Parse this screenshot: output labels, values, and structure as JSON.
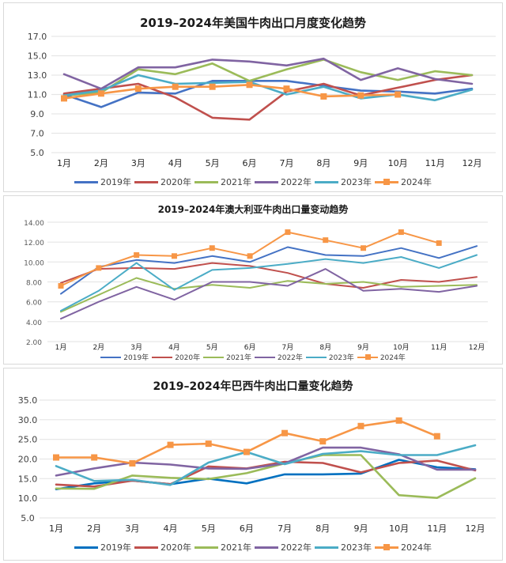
{
  "chart_data": [
    {
      "type": "line",
      "title": "2019–2024年美国牛肉出口月度变化趋势",
      "xlabel": "",
      "ylabel": "",
      "categories": [
        "1月",
        "2月",
        "3月",
        "4月",
        "5月",
        "6月",
        "7月",
        "8月",
        "9月",
        "10月",
        "11月",
        "12月"
      ],
      "ylim": [
        5.0,
        17.0
      ],
      "yticks": [
        "17.0",
        "15.0",
        "13.0",
        "11.0",
        "9.0",
        "7.0",
        "5.0"
      ],
      "ytick_values": [
        17,
        15,
        13,
        11,
        9,
        7,
        5
      ],
      "grid": true,
      "legend": "bottom",
      "series": [
        {
          "name": "2019年",
          "color": "#4472c4",
          "marker": false,
          "values": [
            11.0,
            9.7,
            11.2,
            11.1,
            12.4,
            12.4,
            12.4,
            11.9,
            11.4,
            11.3,
            11.1,
            11.6
          ]
        },
        {
          "name": "2020年",
          "color": "#c0504d",
          "marker": false,
          "values": [
            11.1,
            11.6,
            12.1,
            10.7,
            8.6,
            8.4,
            11.3,
            12.1,
            10.9,
            11.7,
            12.5,
            13.0
          ]
        },
        {
          "name": "2021年",
          "color": "#9bbb59",
          "marker": false,
          "values": [
            10.9,
            11.2,
            13.6,
            13.1,
            14.2,
            12.4,
            13.6,
            14.6,
            13.3,
            12.5,
            13.4,
            13.0
          ]
        },
        {
          "name": "2022年",
          "color": "#8064a2",
          "marker": false,
          "values": [
            13.1,
            11.6,
            13.8,
            13.8,
            14.6,
            14.4,
            14.0,
            14.7,
            12.5,
            13.7,
            12.6,
            12.1
          ]
        },
        {
          "name": "2023年",
          "color": "#4bacc6",
          "marker": false,
          "values": [
            10.9,
            11.4,
            13.0,
            12.1,
            12.2,
            12.3,
            11.0,
            11.8,
            10.6,
            11.0,
            10.4,
            11.5
          ]
        },
        {
          "name": "2024年",
          "color": "#f79646",
          "marker": true,
          "values": [
            10.6,
            11.1,
            11.6,
            11.8,
            11.8,
            12.0,
            11.6,
            10.8,
            10.9,
            11.0,
            null,
            null
          ]
        }
      ]
    },
    {
      "type": "line",
      "title": "2019–2024年澳大利亚牛肉出口量变动趋势",
      "xlabel": "",
      "ylabel": "",
      "categories": [
        "1月",
        "2月",
        "3月",
        "4月",
        "5月",
        "6月",
        "7月",
        "8月",
        "9月",
        "10月",
        "11月",
        "12月"
      ],
      "ylim": [
        2.0,
        14.0
      ],
      "yticks": [
        "14.00",
        "12.00",
        "10.00",
        "8.00",
        "6.00",
        "4.00",
        "2.00"
      ],
      "ytick_values": [
        14,
        12,
        10,
        8,
        6,
        4,
        2
      ],
      "grid": true,
      "legend": "bottom",
      "series": [
        {
          "name": "2019年",
          "color": "#4472c4",
          "marker": false,
          "values": [
            6.8,
            9.5,
            10.2,
            9.9,
            10.6,
            10.0,
            11.5,
            10.7,
            10.6,
            11.4,
            10.4,
            11.6
          ]
        },
        {
          "name": "2020年",
          "color": "#c0504d",
          "marker": false,
          "values": [
            7.9,
            9.3,
            9.4,
            9.3,
            9.9,
            9.6,
            8.9,
            7.8,
            7.4,
            8.2,
            8.0,
            8.5
          ]
        },
        {
          "name": "2021年",
          "color": "#9bbb59",
          "marker": false,
          "values": [
            5.0,
            6.7,
            8.4,
            7.3,
            7.7,
            7.4,
            8.1,
            7.8,
            8.0,
            7.5,
            7.6,
            7.7
          ]
        },
        {
          "name": "2022年",
          "color": "#8064a2",
          "marker": false,
          "values": [
            4.3,
            6.0,
            7.5,
            6.2,
            8.0,
            8.0,
            7.6,
            9.3,
            7.1,
            7.3,
            7.0,
            7.6
          ]
        },
        {
          "name": "2023年",
          "color": "#4bacc6",
          "marker": false,
          "values": [
            5.1,
            7.1,
            9.9,
            7.2,
            9.2,
            9.4,
            9.8,
            10.3,
            9.9,
            10.5,
            9.4,
            10.7
          ]
        },
        {
          "name": "2024年",
          "color": "#f79646",
          "marker": true,
          "values": [
            7.6,
            9.4,
            10.7,
            10.6,
            11.4,
            10.6,
            13.0,
            12.2,
            11.4,
            13.0,
            11.9,
            null
          ]
        }
      ]
    },
    {
      "type": "line",
      "title": "2019–2024年巴西牛肉出口量变化趋势",
      "xlabel": "",
      "ylabel": "",
      "categories": [
        "1月",
        "2月",
        "3月",
        "4月",
        "5月",
        "6月",
        "7月",
        "8月",
        "9月",
        "10月",
        "11月",
        "12月"
      ],
      "ylim": [
        5.0,
        35.0
      ],
      "yticks": [
        "35.0",
        "30.0",
        "25.0",
        "20.0",
        "15.0",
        "10.0",
        "5.0"
      ],
      "ytick_values": [
        35,
        30,
        25,
        20,
        15,
        10,
        5
      ],
      "grid": true,
      "legend": "bottom",
      "series": [
        {
          "name": "2019年",
          "color": "#0070c0",
          "marker": false,
          "values": [
            12.3,
            13.8,
            14.5,
            13.6,
            15.0,
            13.8,
            16.1,
            16.1,
            16.3,
            19.8,
            17.9,
            17.4
          ]
        },
        {
          "name": "2020年",
          "color": "#c0504d",
          "marker": false,
          "values": [
            13.5,
            13.0,
            14.5,
            13.6,
            18.1,
            17.6,
            19.3,
            19.0,
            16.6,
            19.0,
            19.6,
            17.1
          ]
        },
        {
          "name": "2021年",
          "color": "#9bbb59",
          "marker": false,
          "values": [
            12.5,
            12.4,
            15.8,
            15.2,
            14.9,
            16.4,
            18.9,
            21.0,
            21.0,
            10.8,
            10.1,
            15.1
          ]
        },
        {
          "name": "2022年",
          "color": "#8064a2",
          "marker": false,
          "values": [
            15.8,
            17.6,
            19.1,
            18.6,
            17.6,
            17.5,
            18.9,
            22.9,
            22.9,
            21.2,
            17.3,
            17.3
          ]
        },
        {
          "name": "2023年",
          "color": "#4bacc6",
          "marker": false,
          "values": [
            18.2,
            14.4,
            14.7,
            13.4,
            19.1,
            21.8,
            18.7,
            21.3,
            22.0,
            21.0,
            21.0,
            23.5
          ]
        },
        {
          "name": "2024年",
          "color": "#f79646",
          "marker": true,
          "values": [
            20.4,
            20.4,
            18.9,
            23.6,
            23.9,
            21.8,
            26.6,
            24.5,
            28.4,
            29.8,
            25.8,
            null
          ]
        }
      ]
    }
  ]
}
